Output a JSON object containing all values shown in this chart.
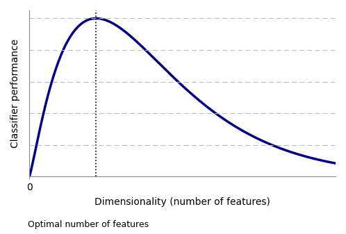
{
  "title": "",
  "xlabel": "Dimensionality (number of features)",
  "ylabel": "Classifier performance",
  "curve_color": "#00008B",
  "curve_linewidth": 2.5,
  "x0_tick_label": "0",
  "annotation_text": "Optimal number of features",
  "grid_color": "#bbbbbb",
  "grid_linestyle": "--",
  "background_color": "#ffffff",
  "xlim": [
    0,
    1.0
  ],
  "ylim": [
    0,
    1.05
  ],
  "curve_a": 1.2,
  "curve_b": 5.5,
  "n_gridlines": 6
}
